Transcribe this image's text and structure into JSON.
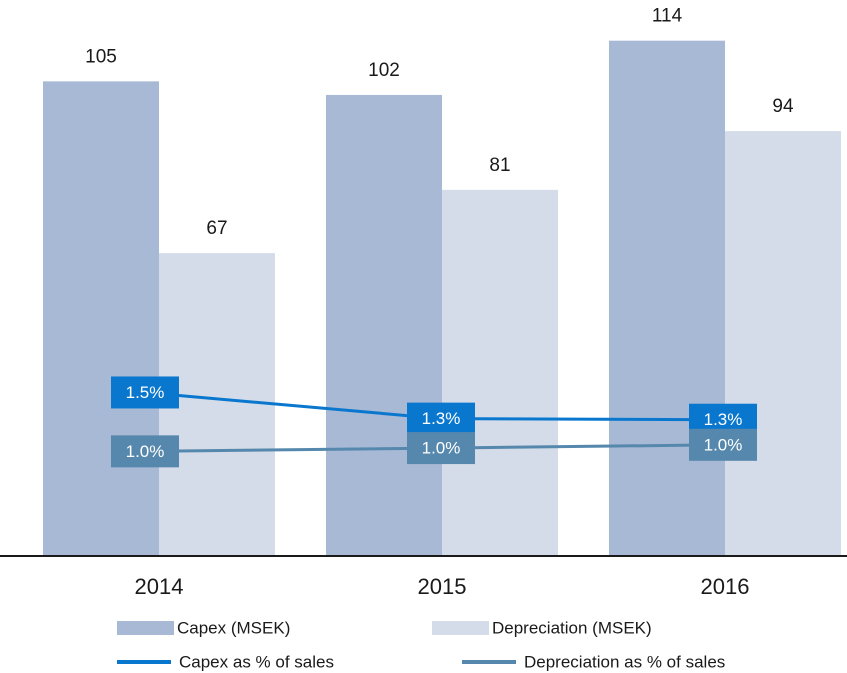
{
  "chart_data": {
    "type": "bar",
    "categories": [
      "2014",
      "2015",
      "2016"
    ],
    "ylim": [
      0,
      123
    ],
    "y2lim": [
      0,
      5.1
    ],
    "series": [
      {
        "name": "Capex (MSEK)",
        "type": "bar",
        "color": "#a7b9d5",
        "values": [
          105,
          102,
          114
        ]
      },
      {
        "name": "Depreciation (MSEK)",
        "type": "bar",
        "color": "#d3dce8",
        "values": [
          67,
          81,
          94
        ]
      },
      {
        "name": "Capex as % of sales",
        "type": "line",
        "axis": "y2",
        "color": "#0a77cf",
        "values": [
          1.5,
          1.26,
          1.25
        ],
        "value_labels": [
          "1.5%",
          "1.3%",
          "1.3%"
        ]
      },
      {
        "name": "Depreciation as % of sales",
        "type": "line",
        "axis": "y2",
        "color": "#5688ad",
        "values": [
          0.96,
          0.99,
          1.02
        ],
        "value_labels": [
          "1.0%",
          "1.0%",
          "1.0%"
        ]
      }
    ]
  }
}
